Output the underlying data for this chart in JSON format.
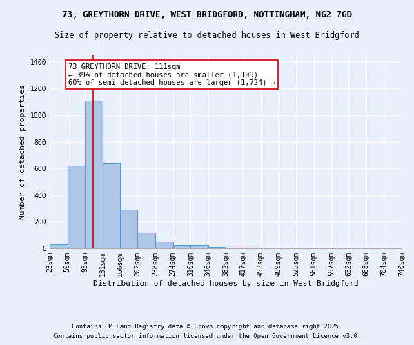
{
  "title1": "73, GREYTHORN DRIVE, WEST BRIDGFORD, NOTTINGHAM, NG2 7GD",
  "title2": "Size of property relative to detached houses in West Bridgford",
  "xlabel": "Distribution of detached houses by size in West Bridgford",
  "ylabel": "Number of detached properties",
  "bin_edges": [
    23,
    59,
    95,
    131,
    166,
    202,
    238,
    274,
    310,
    346,
    382,
    417,
    453,
    489,
    525,
    561,
    597,
    632,
    668,
    704,
    740
  ],
  "bar_heights": [
    30,
    620,
    1109,
    640,
    290,
    120,
    50,
    25,
    25,
    10,
    5,
    3,
    2,
    1,
    1,
    0,
    0,
    0,
    0,
    0
  ],
  "bar_color": "#aec6e8",
  "bar_edge_color": "#5b9bd5",
  "bar_linewidth": 0.8,
  "background_color": "#eaf0fb",
  "grid_color": "#ffffff",
  "red_line_x": 111,
  "red_line_color": "#cc0000",
  "annotation_text": "73 GREYTHORN DRIVE: 111sqm\n← 39% of detached houses are smaller (1,109)\n60% of semi-detached houses are larger (1,724) →",
  "annotation_box_color": "#ffffff",
  "annotation_box_edge": "#cc0000",
  "ylim": [
    0,
    1450
  ],
  "yticks": [
    0,
    200,
    400,
    600,
    800,
    1000,
    1200,
    1400
  ],
  "footer1": "Contains HM Land Registry data © Crown copyright and database right 2025.",
  "footer2": "Contains public sector information licensed under the Open Government Licence v3.0.",
  "title1_fontsize": 9,
  "title2_fontsize": 8.5,
  "xlabel_fontsize": 8,
  "ylabel_fontsize": 8,
  "tick_fontsize": 7,
  "annotation_fontsize": 7.5,
  "footer_fontsize": 6.5
}
